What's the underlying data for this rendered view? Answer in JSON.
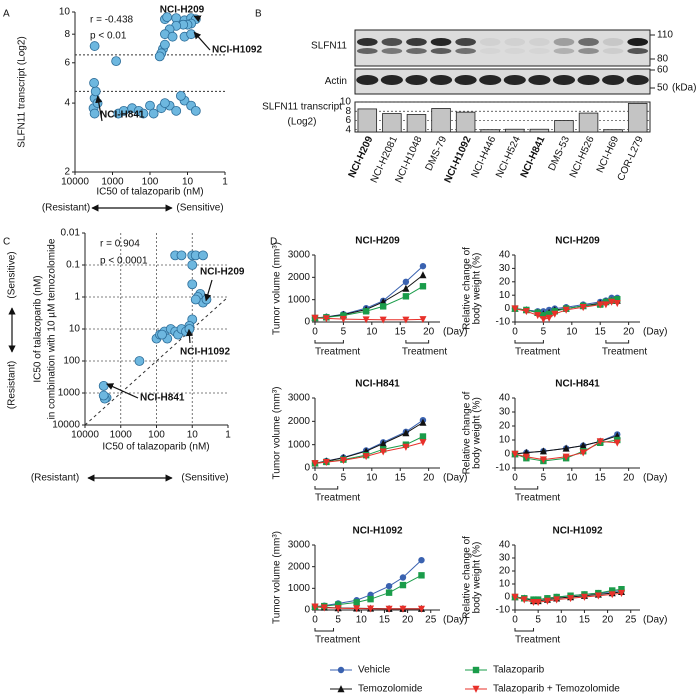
{
  "panel_labels": [
    "A",
    "B",
    "C",
    "D"
  ],
  "direction_labels": {
    "resistant": "(Resistant)",
    "sensitive": "(Sensitive)"
  },
  "blot": {
    "rows": [
      "SLFN11",
      "Actin"
    ],
    "markers": [
      110,
      80,
      60,
      50
    ],
    "unit": "(kDa)"
  },
  "chart_data": [
    {
      "type": "scatter",
      "log": true,
      "x_label": "IC50 of talazoparib (nM)",
      "y_label": "SLFN11 transcript (Log2)",
      "stats": [
        "r = -0.438",
        "p < 0.01"
      ],
      "annotations": [
        {
          "text": "NCI-H209",
          "color": "#e02020"
        },
        {
          "text": "NCI-H1092",
          "color": "#e02020"
        },
        {
          "text": "NCI-H841",
          "color": "#2a3590"
        }
      ],
      "x": [
        40,
        35,
        20,
        12,
        8,
        6,
        8,
        10,
        13,
        20,
        30,
        40,
        25,
        12,
        8,
        45,
        50,
        55,
        40,
        3000,
        800,
        3000,
        3200,
        3000,
        2800,
        3100,
        2500,
        700,
        500,
        300,
        200,
        150,
        100,
        80,
        50,
        30,
        20,
        12,
        8,
        6,
        15,
        40
      ],
      "y": [
        9.3,
        9.5,
        9.4,
        9.2,
        9.4,
        9.3,
        8.9,
        8.8,
        8.8,
        8.7,
        8.4,
        8.0,
        7.8,
        7.8,
        8.0,
        6.9,
        6.6,
        6.4,
        7.2,
        7.1,
        6.1,
        4.2,
        3.8,
        3.6,
        4.5,
        4.9,
        4.0,
        3.6,
        3.7,
        3.8,
        3.7,
        3.6,
        3.9,
        3.6,
        3.8,
        3.9,
        3.7,
        4.1,
        3.9,
        3.7,
        4.3,
        4.0
      ],
      "color": "#6db7df",
      "xlim": [
        10000,
        1
      ],
      "ylim": [
        2,
        10
      ],
      "xticks": [
        10000,
        1000,
        100,
        10,
        1
      ],
      "yticks": [
        2,
        4,
        6,
        8,
        10
      ],
      "hlines": [
        6.5,
        4.5
      ]
    },
    {
      "type": "bar",
      "y_label": [
        "SLFN11 transcript",
        "(Log2)"
      ],
      "categories": [
        "NCI-H209",
        "NCI-H2081",
        "NCI-H1048",
        "DMS-79",
        "NCI-H1092",
        "NCI-H446",
        "NCI-H524",
        "NCI-H841",
        "DMS-53",
        "NCI-H526",
        "NCI-H69",
        "COR-L279"
      ],
      "label_colors": [
        "#e02020",
        "#000000",
        "#000000",
        "#000000",
        "#e02020",
        "#000000",
        "#000000",
        "#2a3590",
        "#000000",
        "#000000",
        "#000000",
        "#000000"
      ],
      "values": [
        8.5,
        7.5,
        7.3,
        8.6,
        7.8,
        4.0,
        4.1,
        4.1,
        6.0,
        7.6,
        4.0,
        9.7
      ],
      "color": "#c4c4c4",
      "ylim": [
        3.5,
        10
      ],
      "yticks": [
        4,
        6,
        8,
        10
      ],
      "grid": true
    },
    {
      "type": "scatter",
      "log": true,
      "grid": true,
      "identity_line": true,
      "x_label": "IC50 of talazoparib (nM)",
      "y_label": [
        "IC50 of talazoparib (nM)",
        "in combination with 10 µM temozolomide"
      ],
      "stats": [
        "r = 0.904",
        "p < 0.0001"
      ],
      "annotations": [
        {
          "text": "NCI-H209",
          "color": "#e02020"
        },
        {
          "text": "NCI-H1092",
          "color": "#e02020"
        },
        {
          "text": "NCI-H841",
          "color": "#2a3590"
        }
      ],
      "x": [
        30,
        20,
        10,
        8,
        5,
        10,
        10,
        6,
        7,
        5,
        8,
        4,
        10,
        12,
        100,
        80,
        60,
        40,
        30,
        25,
        20,
        15,
        12,
        50,
        70,
        300,
        3000,
        2500,
        2800,
        3000
      ],
      "y": [
        0.05,
        0.05,
        0.05,
        0.05,
        0.05,
        0.1,
        0.4,
        0.8,
        1,
        1.5,
        1.2,
        1.2,
        5,
        8,
        20,
        15,
        12,
        10,
        12,
        15,
        10,
        12,
        10,
        20,
        15,
        100,
        600,
        1400,
        1500,
        1200
      ],
      "color": "#6db7df",
      "xlim": [
        10000,
        1
      ],
      "ylim": [
        10000,
        0.01
      ],
      "xticks": [
        10000,
        1000,
        100,
        10,
        1
      ],
      "yticks": [
        0.01,
        0.1,
        1,
        10,
        100,
        1000,
        10000
      ]
    },
    {
      "type": "line",
      "title": "NCI-H209",
      "title_color": "#e02020",
      "y_label": [
        "Tumor volume (mm³)"
      ],
      "x_label": "(Day)",
      "treatment": {
        "label": "Treatment",
        "periods": [
          [
            0,
            5
          ],
          [
            16,
            20
          ]
        ]
      },
      "x": [
        0,
        2,
        5,
        9,
        12,
        16,
        19
      ],
      "xlim": [
        0,
        22
      ],
      "xticks": [
        0,
        5,
        10,
        15,
        20
      ],
      "ylim": [
        0,
        3000
      ],
      "yticks": [
        0,
        1000,
        2000,
        3000
      ],
      "series": [
        {
          "name": "Vehicle",
          "color": "#3a62b0",
          "marker": "circle",
          "values": [
            180,
            230,
            350,
            620,
            950,
            1800,
            2500
          ]
        },
        {
          "name": "Temozolomide",
          "color": "#111111",
          "marker": "triangle",
          "values": [
            180,
            220,
            330,
            560,
            900,
            1500,
            2100
          ]
        },
        {
          "name": "Talazoparib",
          "color": "#1a9c4a",
          "marker": "square",
          "values": [
            180,
            210,
            290,
            480,
            700,
            1150,
            1600
          ]
        },
        {
          "name": "Talazoparib + Temozolomide",
          "color": "#e8302a",
          "marker": "triangle-down",
          "values": [
            180,
            160,
            130,
            110,
            100,
            100,
            120
          ]
        }
      ]
    },
    {
      "type": "line",
      "title": "NCI-H209",
      "title_color": "#e02020",
      "y_label": [
        "Relative change of",
        "body weight (%)"
      ],
      "x_label": "(Day)",
      "treatment": {
        "label": "Treatment",
        "periods": [
          [
            0,
            5
          ],
          [
            16,
            20
          ]
        ]
      },
      "x": [
        0,
        2,
        4,
        5,
        6,
        7,
        9,
        12,
        15,
        16,
        17,
        18
      ],
      "xlim": [
        0,
        22
      ],
      "xticks": [
        0,
        5,
        10,
        15,
        20
      ],
      "ylim": [
        -10,
        40
      ],
      "yticks": [
        -10,
        0,
        10,
        20,
        30,
        40
      ],
      "series": [
        {
          "name": "Vehicle",
          "color": "#3a62b0",
          "marker": "circle",
          "values": [
            0,
            -1,
            -2,
            -2,
            -1,
            0,
            1,
            3,
            5,
            6,
            8,
            8
          ]
        },
        {
          "name": "Temozolomide",
          "color": "#111111",
          "marker": "triangle",
          "values": [
            0,
            -1,
            -3,
            -4,
            -3,
            -1,
            0,
            2,
            4,
            5,
            6,
            6
          ]
        },
        {
          "name": "Talazoparib",
          "color": "#1a9c4a",
          "marker": "square",
          "values": [
            0,
            -1,
            -3,
            -5,
            -4,
            -2,
            0,
            2,
            3,
            5,
            6,
            7
          ]
        },
        {
          "name": "Talazoparib + Temozolomide",
          "color": "#e8302a",
          "marker": "triangle-down",
          "values": [
            0,
            -2,
            -5,
            -8,
            -7,
            -4,
            -1,
            1,
            3,
            3,
            5,
            4
          ]
        }
      ]
    },
    {
      "type": "line",
      "title": "NCI-H841",
      "title_color": "#2a3590",
      "y_label": [
        "Tumor volume (mm³)"
      ],
      "x_label": "(Day)",
      "treatment": {
        "label": "Treatment",
        "periods": [
          [
            0,
            4
          ]
        ]
      },
      "x": [
        0,
        2,
        5,
        9,
        12,
        16,
        19
      ],
      "xlim": [
        0,
        22
      ],
      "xticks": [
        0,
        5,
        10,
        15,
        20
      ],
      "ylim": [
        0,
        3000
      ],
      "yticks": [
        0,
        1000,
        2000,
        3000
      ],
      "series": [
        {
          "name": "Vehicle",
          "color": "#3a62b0",
          "marker": "circle",
          "values": [
            200,
            300,
            450,
            750,
            1100,
            1550,
            2050
          ]
        },
        {
          "name": "Temozolomide",
          "color": "#111111",
          "marker": "triangle",
          "values": [
            200,
            290,
            440,
            720,
            1050,
            1500,
            1950
          ]
        },
        {
          "name": "Talazoparib",
          "color": "#1a9c4a",
          "marker": "square",
          "values": [
            200,
            260,
            360,
            550,
            800,
            1000,
            1350
          ]
        },
        {
          "name": "Talazoparib + Temozolomide",
          "color": "#e8302a",
          "marker": "triangle-down",
          "values": [
            200,
            250,
            330,
            500,
            700,
            900,
            1100
          ]
        }
      ]
    },
    {
      "type": "line",
      "title": "NCI-H841",
      "title_color": "#2a3590",
      "y_label": [
        "Relative change of",
        "body weight (%)"
      ],
      "x_label": "(Day)",
      "treatment": {
        "label": "Treatment",
        "periods": [
          [
            0,
            4
          ]
        ]
      },
      "x": [
        0,
        2,
        5,
        9,
        12,
        15,
        18
      ],
      "xlim": [
        0,
        22
      ],
      "xticks": [
        0,
        5,
        10,
        15,
        20
      ],
      "ylim": [
        -10,
        40
      ],
      "yticks": [
        -10,
        0,
        10,
        20,
        30,
        40
      ],
      "series": [
        {
          "name": "Vehicle",
          "color": "#3a62b0",
          "marker": "circle",
          "values": [
            0,
            1,
            2,
            4,
            6,
            9,
            14
          ]
        },
        {
          "name": "Temozolomide",
          "color": "#111111",
          "marker": "triangle",
          "values": [
            0,
            1,
            2,
            4,
            6,
            9,
            13
          ]
        },
        {
          "name": "Talazoparib",
          "color": "#1a9c4a",
          "marker": "square",
          "values": [
            0,
            -3,
            -5,
            -3,
            2,
            8,
            10
          ]
        },
        {
          "name": "Talazoparib + Temozolomide",
          "color": "#e8302a",
          "marker": "triangle-down",
          "values": [
            0,
            -2,
            -4,
            -2,
            1,
            9,
            8
          ]
        }
      ]
    },
    {
      "type": "line",
      "title": "NCI-H1092",
      "title_color": "#e02020",
      "y_label": [
        "Tumor volume (mm³)"
      ],
      "x_label": "(Day)",
      "treatment": {
        "label": "Treatment",
        "periods": [
          [
            0,
            4
          ]
        ]
      },
      "x": [
        0,
        2,
        5,
        9,
        12,
        16,
        19,
        23
      ],
      "xlim": [
        0,
        27
      ],
      "xticks": [
        0,
        5,
        10,
        15,
        20,
        25
      ],
      "ylim": [
        0,
        3000
      ],
      "yticks": [
        0,
        1000,
        2000,
        3000
      ],
      "series": [
        {
          "name": "Vehicle",
          "color": "#3a62b0",
          "marker": "circle",
          "values": [
            150,
            200,
            300,
            450,
            700,
            1100,
            1500,
            2300
          ]
        },
        {
          "name": "Temozolomide",
          "color": "#111111",
          "marker": "triangle",
          "values": [
            150,
            120,
            90,
            80,
            70,
            60,
            60,
            60
          ]
        },
        {
          "name": "Talazoparib",
          "color": "#1a9c4a",
          "marker": "square",
          "values": [
            150,
            180,
            250,
            350,
            500,
            800,
            1150,
            1600
          ]
        },
        {
          "name": "Talazoparib + Temozolomide",
          "color": "#e8302a",
          "marker": "triangle-down",
          "values": [
            150,
            110,
            80,
            70,
            60,
            50,
            50,
            50
          ]
        }
      ]
    },
    {
      "type": "line",
      "title": "NCI-H1092",
      "title_color": "#e02020",
      "y_label": [
        "Relative change of",
        "body weight (%)"
      ],
      "x_label": "(Day)",
      "treatment": {
        "label": "Treatment",
        "periods": [
          [
            0,
            4
          ]
        ]
      },
      "x": [
        0,
        2,
        4,
        5,
        7,
        9,
        12,
        15,
        18,
        21,
        23
      ],
      "xlim": [
        0,
        27
      ],
      "xticks": [
        0,
        5,
        10,
        15,
        20,
        25
      ],
      "ylim": [
        -10,
        40
      ],
      "yticks": [
        -10,
        0,
        10,
        20,
        30,
        40
      ],
      "series": [
        {
          "name": "Vehicle",
          "color": "#3a62b0",
          "marker": "circle",
          "values": [
            0,
            -1,
            -2,
            -2,
            -1,
            0,
            1,
            2,
            3,
            4,
            5
          ]
        },
        {
          "name": "Temozolomide",
          "color": "#111111",
          "marker": "triangle",
          "values": [
            0,
            -1,
            -3,
            -3,
            -2,
            -1,
            0,
            1,
            2,
            3,
            4
          ]
        },
        {
          "name": "Talazoparib",
          "color": "#1a9c4a",
          "marker": "square",
          "values": [
            0,
            -1,
            -2,
            -2,
            -1,
            0,
            1,
            2,
            3,
            5,
            6
          ]
        },
        {
          "name": "Talazoparib + Temozolomide",
          "color": "#e8302a",
          "marker": "triangle-down",
          "values": [
            0,
            -2,
            -4,
            -4,
            -3,
            -2,
            -1,
            0,
            1,
            2,
            3
          ]
        }
      ]
    }
  ]
}
